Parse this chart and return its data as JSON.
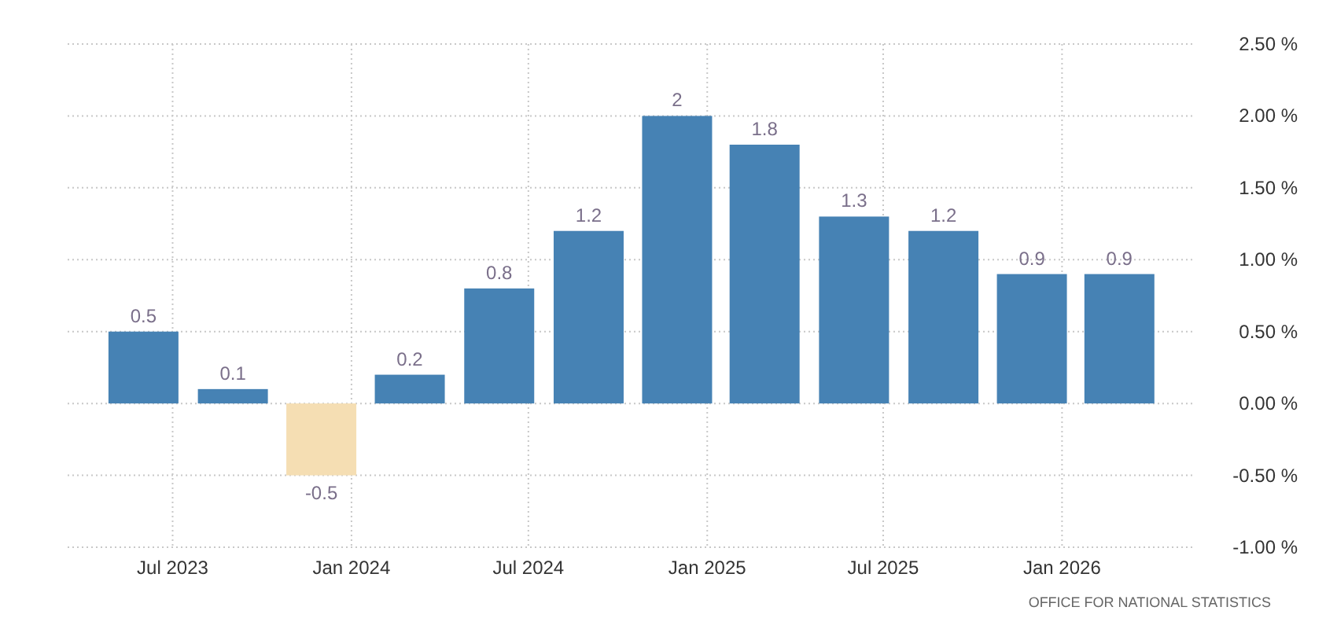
{
  "chart_data": {
    "type": "bar",
    "x": [
      "2023-06",
      "2023-09",
      "2023-12",
      "2024-03",
      "2024-06",
      "2024-09",
      "2024-12",
      "2025-03",
      "2025-06",
      "2025-09",
      "2025-12",
      "2026-03"
    ],
    "values": [
      0.5,
      0.1,
      -0.5,
      0.2,
      0.8,
      1.2,
      2,
      1.8,
      1.3,
      1.2,
      0.9,
      0.9
    ],
    "colors": [
      "#4682b4",
      "#4682b4",
      "#f5deb3",
      "#4682b4",
      "#4682b4",
      "#4682b4",
      "#4682b4",
      "#4682b4",
      "#4682b4",
      "#4682b4",
      "#4682b4",
      "#4682b4"
    ],
    "data_labels": true,
    "xlim": [
      "2023-03-15",
      "2026-05-15"
    ],
    "xticks": [
      {
        "value": "2023-07-01",
        "label": "Jul 2023"
      },
      {
        "value": "2024-01-01",
        "label": "Jan 2024"
      },
      {
        "value": "2024-07-01",
        "label": "Jul 2024"
      },
      {
        "value": "2025-01-01",
        "label": "Jan 2025"
      },
      {
        "value": "2025-07-01",
        "label": "Jul 2025"
      },
      {
        "value": "2026-01-01",
        "label": "Jan 2026"
      }
    ],
    "ylim": [
      -1,
      2.5
    ],
    "yticks": [
      {
        "value": -1,
        "label": "-1.00 %"
      },
      {
        "value": -0.5,
        "label": "-0.50 %"
      },
      {
        "value": 0,
        "label": "0.00 %"
      },
      {
        "value": 0.5,
        "label": "0.50 %"
      },
      {
        "value": 1,
        "label": "1.00 %"
      },
      {
        "value": 1.5,
        "label": "1.50 %"
      },
      {
        "value": 2,
        "label": "2.00 %"
      },
      {
        "value": 2.5,
        "label": "2.50 %"
      }
    ],
    "grid": true,
    "annotations": [
      "OFFICE FOR NATIONAL STATISTICS"
    ]
  }
}
